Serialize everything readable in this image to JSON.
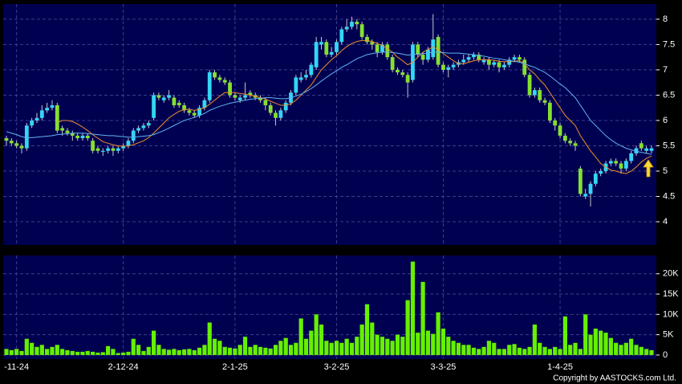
{
  "chart_data": [
    {
      "type": "candlestick",
      "categories": [
        null,
        null,
        "-11-24",
        null,
        null,
        null,
        null,
        null,
        null,
        null,
        null,
        null,
        null,
        null,
        null,
        null,
        null,
        null,
        null,
        null,
        null,
        null,
        null,
        "2-12-24",
        null,
        null,
        null,
        null,
        null,
        null,
        null,
        null,
        null,
        null,
        null,
        null,
        null,
        null,
        null,
        null,
        null,
        null,
        null,
        null,
        null,
        "2-1-25",
        null,
        null,
        null,
        null,
        null,
        null,
        null,
        null,
        null,
        null,
        null,
        null,
        null,
        null,
        null,
        null,
        null,
        null,
        null,
        "3-2-25",
        null,
        null,
        null,
        null,
        null,
        null,
        null,
        null,
        null,
        null,
        null,
        null,
        null,
        null,
        null,
        null,
        null,
        null,
        null,
        null,
        "3-3-25",
        null,
        null,
        null,
        null,
        null,
        null,
        null,
        null,
        null,
        null,
        null,
        null,
        null,
        null,
        null,
        null,
        null,
        null,
        null,
        null,
        null,
        null,
        "1-4-25",
        null,
        null,
        null,
        null,
        null,
        null,
        null,
        null,
        null,
        null,
        null,
        null,
        null,
        null,
        null,
        null,
        null,
        null
      ],
      "open": [
        5.65,
        5.6,
        5.55,
        5.5,
        5.45,
        5.9,
        6.0,
        6.05,
        6.2,
        6.25,
        6.3,
        5.85,
        5.8,
        5.75,
        5.7,
        5.65,
        5.7,
        5.6,
        5.45,
        5.4,
        5.4,
        5.45,
        5.4,
        5.45,
        5.5,
        5.6,
        5.8,
        5.85,
        5.9,
        6.05,
        6.5,
        6.4,
        6.45,
        6.45,
        6.35,
        6.3,
        6.2,
        6.15,
        6.1,
        6.25,
        6.4,
        6.95,
        6.85,
        6.8,
        6.75,
        6.5,
        6.4,
        6.45,
        6.55,
        6.5,
        6.45,
        6.4,
        6.3,
        6.15,
        6.05,
        6.2,
        6.35,
        6.55,
        6.8,
        6.85,
        6.9,
        7.05,
        7.5,
        7.55,
        7.3,
        7.35,
        7.55,
        7.8,
        7.85,
        7.95,
        7.9,
        7.65,
        7.55,
        7.5,
        7.35,
        7.5,
        7.25,
        7.0,
        6.95,
        6.9,
        6.8,
        7.5,
        7.3,
        7.2,
        7.25,
        7.65,
        7.1,
        7.0,
        7.05,
        7.1,
        7.15,
        7.2,
        7.25,
        7.3,
        7.15,
        7.2,
        7.1,
        7.15,
        7.05,
        7.1,
        7.2,
        7.25,
        7.2,
        6.9,
        6.5,
        6.6,
        6.4,
        6.35,
        6.0,
        5.9,
        5.7,
        5.6,
        5.55,
        5.05,
        4.5,
        4.55,
        4.75,
        4.95,
        5.0,
        5.15,
        5.2,
        5.15,
        5.05,
        5.2,
        5.35,
        5.55,
        5.4,
        5.4
      ],
      "high": [
        5.7,
        5.65,
        5.6,
        5.55,
        5.95,
        6.05,
        6.15,
        6.3,
        6.35,
        6.4,
        6.35,
        5.9,
        5.85,
        5.8,
        5.75,
        5.75,
        5.75,
        5.65,
        5.5,
        5.45,
        5.5,
        5.5,
        5.5,
        5.55,
        5.65,
        5.85,
        5.9,
        5.95,
        6.0,
        6.55,
        6.55,
        6.5,
        6.6,
        6.5,
        6.4,
        6.35,
        6.25,
        6.2,
        6.3,
        6.45,
        7.0,
        7.0,
        6.9,
        6.85,
        6.8,
        6.55,
        6.5,
        6.75,
        6.6,
        6.55,
        6.5,
        6.45,
        6.35,
        6.2,
        6.25,
        6.4,
        6.6,
        6.9,
        6.95,
        7.0,
        7.15,
        7.65,
        7.65,
        7.6,
        7.45,
        7.6,
        7.85,
        8.0,
        8.05,
        8.0,
        7.95,
        7.7,
        7.6,
        7.55,
        7.55,
        7.55,
        7.3,
        7.05,
        7.0,
        6.95,
        7.55,
        7.55,
        7.35,
        7.45,
        8.1,
        7.7,
        7.15,
        7.1,
        7.15,
        7.2,
        7.3,
        7.3,
        7.35,
        7.35,
        7.25,
        7.25,
        7.2,
        7.2,
        7.15,
        7.25,
        7.3,
        7.3,
        7.25,
        6.95,
        6.65,
        6.65,
        6.45,
        6.4,
        6.05,
        5.95,
        5.75,
        5.65,
        5.6,
        5.1,
        4.65,
        4.8,
        5.0,
        5.05,
        5.2,
        5.25,
        5.25,
        5.2,
        5.25,
        5.4,
        5.5,
        5.6,
        5.5,
        5.5
      ],
      "low": [
        5.5,
        5.5,
        5.45,
        5.35,
        5.4,
        5.85,
        5.95,
        6.0,
        6.15,
        6.2,
        5.75,
        5.7,
        5.7,
        5.6,
        5.6,
        5.6,
        5.6,
        5.35,
        5.35,
        5.3,
        5.35,
        5.3,
        5.35,
        5.4,
        5.45,
        5.55,
        5.75,
        5.8,
        5.85,
        6.0,
        6.4,
        6.35,
        6.4,
        6.25,
        6.25,
        6.15,
        6.1,
        6.05,
        6.05,
        6.2,
        6.35,
        6.8,
        6.75,
        6.7,
        6.45,
        6.4,
        6.35,
        6.4,
        6.45,
        6.4,
        6.35,
        6.2,
        6.1,
        5.9,
        6.0,
        6.15,
        6.3,
        6.5,
        6.75,
        6.8,
        6.85,
        7.0,
        7.4,
        7.25,
        7.25,
        7.3,
        7.5,
        7.75,
        7.8,
        7.8,
        7.6,
        7.5,
        7.4,
        7.25,
        7.3,
        7.2,
        6.95,
        6.9,
        6.85,
        6.45,
        6.75,
        7.25,
        7.1,
        7.15,
        7.2,
        7.05,
        6.95,
        6.85,
        7.0,
        7.05,
        7.1,
        7.15,
        7.2,
        7.15,
        7.1,
        7.0,
        7.05,
        6.95,
        7.0,
        7.05,
        7.15,
        7.15,
        6.85,
        6.45,
        6.45,
        6.35,
        6.3,
        5.95,
        5.8,
        5.65,
        5.55,
        5.5,
        5.4,
        4.5,
        4.45,
        4.3,
        4.7,
        4.9,
        4.95,
        5.1,
        5.1,
        4.95,
        5.0,
        5.15,
        5.3,
        5.4,
        5.35,
        5.35
      ],
      "close": [
        5.6,
        5.55,
        5.5,
        5.45,
        5.9,
        6.0,
        6.05,
        6.2,
        6.25,
        6.3,
        5.8,
        5.8,
        5.75,
        5.7,
        5.65,
        5.7,
        5.65,
        5.4,
        5.4,
        5.4,
        5.45,
        5.4,
        5.45,
        5.5,
        5.6,
        5.8,
        5.85,
        5.9,
        5.95,
        6.5,
        6.45,
        6.45,
        6.5,
        6.3,
        6.3,
        6.2,
        6.15,
        6.1,
        6.25,
        6.4,
        6.95,
        6.85,
        6.8,
        6.75,
        6.5,
        6.45,
        6.45,
        6.5,
        6.5,
        6.45,
        6.4,
        6.3,
        6.15,
        6.05,
        6.2,
        6.35,
        6.55,
        6.85,
        6.85,
        6.9,
        7.1,
        7.55,
        7.55,
        7.3,
        7.35,
        7.55,
        7.8,
        7.85,
        7.95,
        7.9,
        7.65,
        7.55,
        7.5,
        7.35,
        7.5,
        7.25,
        7.0,
        6.95,
        6.9,
        6.75,
        7.5,
        7.3,
        7.2,
        7.4,
        7.6,
        7.1,
        7.0,
        7.05,
        7.1,
        7.15,
        7.2,
        7.25,
        7.3,
        7.2,
        7.2,
        7.1,
        7.15,
        7.05,
        7.1,
        7.2,
        7.25,
        7.2,
        6.9,
        6.5,
        6.6,
        6.4,
        6.35,
        6.0,
        5.9,
        5.7,
        5.6,
        5.55,
        5.5,
        4.55,
        4.55,
        4.75,
        4.95,
        5.0,
        5.15,
        5.2,
        5.15,
        5.05,
        5.2,
        5.35,
        5.45,
        5.45,
        5.45,
        5.45
      ],
      "up_color": "#33d6f5",
      "down_color": "#84e030",
      "series": [
        {
          "color": "#f0902a",
          "values": [
            null,
            null,
            null,
            null,
            null,
            null,
            null,
            null,
            null,
            null,
            5.95,
            6.0,
            6.0,
            5.98,
            5.93,
            5.87,
            5.8,
            5.72,
            5.65,
            5.58,
            5.55,
            5.52,
            5.5,
            5.49,
            5.5,
            5.52,
            5.56,
            5.6,
            5.66,
            5.75,
            5.85,
            5.95,
            6.05,
            6.12,
            6.18,
            6.22,
            6.22,
            6.2,
            6.22,
            6.25,
            6.32,
            6.4,
            6.48,
            6.55,
            6.55,
            6.55,
            6.53,
            6.52,
            6.5,
            6.48,
            6.45,
            6.42,
            6.38,
            6.34,
            6.3,
            6.3,
            6.33,
            6.4,
            6.5,
            6.6,
            6.7,
            6.85,
            7.0,
            7.1,
            7.2,
            7.28,
            7.38,
            7.46,
            7.52,
            7.56,
            7.58,
            7.58,
            7.56,
            7.52,
            7.48,
            7.42,
            7.35,
            7.25,
            7.18,
            7.1,
            7.15,
            7.25,
            7.35,
            7.4,
            7.45,
            7.4,
            7.32,
            7.25,
            7.18,
            7.12,
            7.12,
            7.15,
            7.18,
            7.2,
            7.2,
            7.2,
            7.19,
            7.17,
            7.16,
            7.16,
            7.17,
            7.18,
            7.12,
            7.0,
            6.92,
            6.8,
            6.7,
            6.55,
            6.4,
            6.25,
            6.1,
            6.0,
            5.9,
            5.7,
            5.55,
            5.4,
            5.28,
            5.15,
            5.08,
            5.02,
            5.0,
            4.97,
            4.95,
            5.0,
            5.08,
            5.18,
            5.25,
            5.3
          ]
        },
        {
          "color": "#5fb4f2",
          "values": [
            5.78,
            5.75,
            5.72,
            5.68,
            5.66,
            5.66,
            5.67,
            5.68,
            5.69,
            5.7,
            5.72,
            5.73,
            5.74,
            5.75,
            5.75,
            5.75,
            5.74,
            5.73,
            5.72,
            5.71,
            5.7,
            5.7,
            5.69,
            5.68,
            5.67,
            5.67,
            5.68,
            5.69,
            5.7,
            5.72,
            5.76,
            5.8,
            5.85,
            5.9,
            5.95,
            6.0,
            6.03,
            6.06,
            6.1,
            6.14,
            6.2,
            6.24,
            6.28,
            6.31,
            6.34,
            6.36,
            6.38,
            6.4,
            6.42,
            6.43,
            6.44,
            6.45,
            6.45,
            6.44,
            6.43,
            6.43,
            6.45,
            6.48,
            6.52,
            6.57,
            6.63,
            6.7,
            6.78,
            6.85,
            6.92,
            6.98,
            7.05,
            7.1,
            7.16,
            7.22,
            7.26,
            7.3,
            7.32,
            7.34,
            7.35,
            7.35,
            7.34,
            7.33,
            7.31,
            7.29,
            7.3,
            7.31,
            7.32,
            7.33,
            7.35,
            7.35,
            7.34,
            7.33,
            7.33,
            7.33,
            7.32,
            7.31,
            7.3,
            7.28,
            7.27,
            7.25,
            7.23,
            7.22,
            7.2,
            7.18,
            7.17,
            7.15,
            7.12,
            7.08,
            7.05,
            7.0,
            6.95,
            6.88,
            6.8,
            6.72,
            6.65,
            6.55,
            6.45,
            6.3,
            6.15,
            6.0,
            5.9,
            5.8,
            5.7,
            5.62,
            5.55,
            5.5,
            5.45,
            5.42,
            5.39,
            5.37,
            5.35,
            5.33
          ]
        }
      ],
      "ylim": [
        3.54,
        8.3
      ],
      "yticks": [
        4,
        4.5,
        5,
        5.5,
        6,
        6.5,
        7,
        7.5,
        8
      ],
      "grid": true
    },
    {
      "type": "bar",
      "values": [
        1500,
        1200,
        1500,
        1000,
        4000,
        3000,
        2000,
        2500,
        1500,
        2000,
        2500,
        1500,
        1200,
        1000,
        800,
        800,
        1000,
        800,
        600,
        700,
        2200,
        1500,
        500,
        600,
        800,
        4000,
        2500,
        1000,
        2000,
        6000,
        2500,
        1500,
        1300,
        1500,
        1200,
        1400,
        1500,
        1200,
        1800,
        2500,
        8000,
        4000,
        3500,
        2000,
        1800,
        1600,
        2500,
        4500,
        2000,
        2500,
        2000,
        1800,
        1600,
        2500,
        3500,
        4200,
        2500,
        3000,
        9000,
        4000,
        6000,
        10000,
        7500,
        3500,
        3000,
        3500,
        3000,
        4000,
        3000,
        4500,
        7500,
        12500,
        8000,
        5000,
        4500,
        4000,
        3500,
        5000,
        4500,
        13500,
        23000,
        5500,
        18000,
        6000,
        5200,
        10500,
        6500,
        4500,
        3500,
        3000,
        2500,
        2500,
        1800,
        1500,
        2000,
        3500,
        3000,
        1500,
        1500,
        2500,
        2700,
        1800,
        1500,
        2000,
        7500,
        3000,
        2000,
        1500,
        2000,
        1500,
        9500,
        2500,
        3000,
        1500,
        10000,
        5000,
        6500,
        6000,
        5500,
        4200,
        3000,
        2500,
        3000,
        4000,
        2500,
        2000,
        1500,
        1200
      ],
      "color": "#66f000",
      "ylim": [
        -1000,
        24500
      ],
      "yticks": [
        0,
        {
          "value": 5000,
          "label": "5K"
        },
        {
          "value": 10000,
          "label": "10K"
        },
        {
          "value": 15000,
          "label": "15K"
        },
        {
          "value": 20000,
          "label": "20K"
        }
      ],
      "grid": true
    }
  ],
  "copyright": "Copyright by AASTOCKS.com Ltd."
}
